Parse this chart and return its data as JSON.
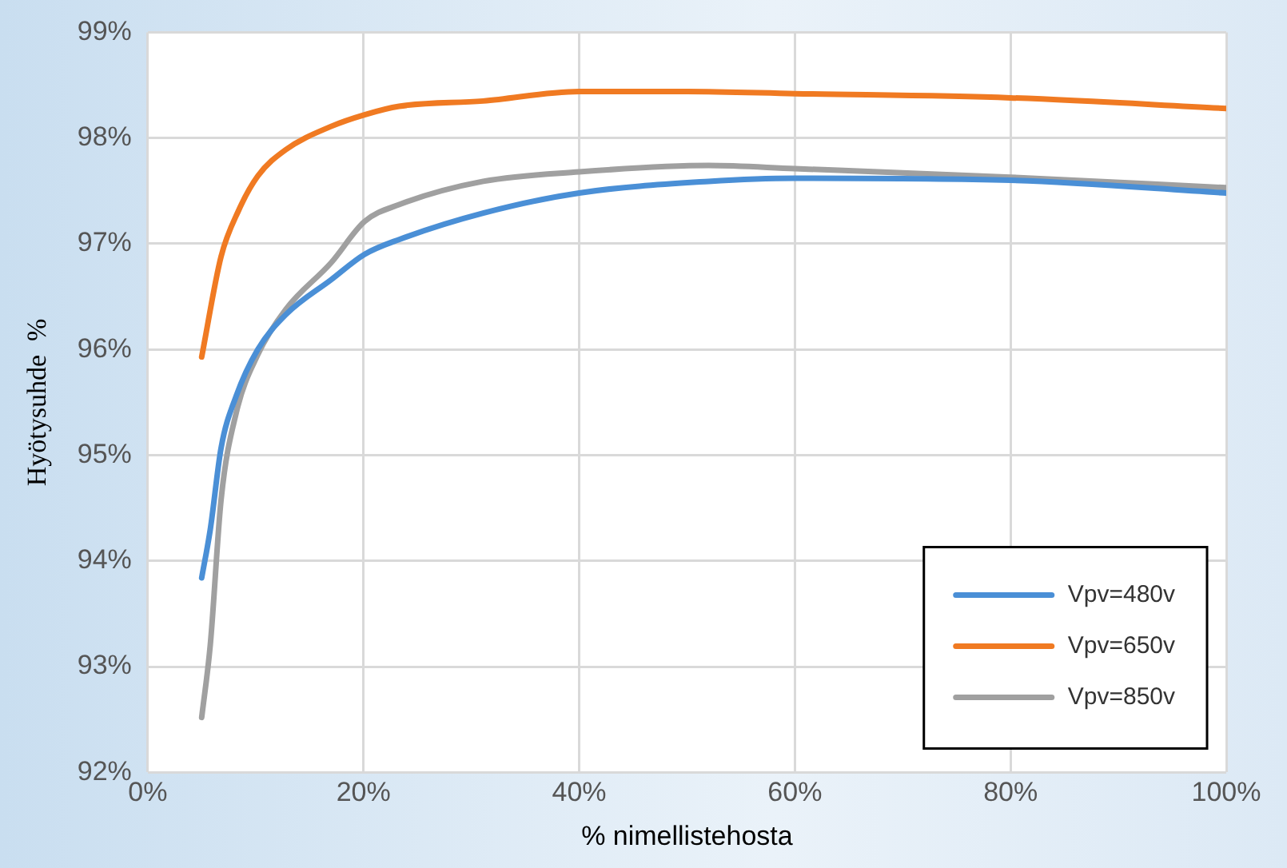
{
  "chart_data": {
    "type": "line",
    "xlabel": "% nimellistehosta",
    "ylabel": "Hyötysuhde  %",
    "xlim": [
      0,
      100
    ],
    "ylim": [
      92,
      99
    ],
    "xticks": [
      {
        "value": 0,
        "label": "0%"
      },
      {
        "value": 20,
        "label": "20%"
      },
      {
        "value": 40,
        "label": "40%"
      },
      {
        "value": 60,
        "label": "60%"
      },
      {
        "value": 80,
        "label": "80%"
      },
      {
        "value": 100,
        "label": "100%"
      }
    ],
    "yticks": [
      {
        "value": 92,
        "label": "92%"
      },
      {
        "value": 93,
        "label": "93%"
      },
      {
        "value": 94,
        "label": "94%"
      },
      {
        "value": 95,
        "label": "95%"
      },
      {
        "value": 96,
        "label": "96%"
      },
      {
        "value": 97,
        "label": "97%"
      },
      {
        "value": 98,
        "label": "98%"
      },
      {
        "value": 99,
        "label": "99%"
      }
    ],
    "grid": true,
    "legend": "bottom right",
    "marker": "none",
    "line_style": "solid",
    "series": [
      {
        "name": "Vpv=480v",
        "color": "#4a8fd6",
        "x": [
          5,
          5.8,
          6.8,
          8.2,
          10.2,
          12.8,
          17,
          20.1,
          23.3,
          31.1,
          40,
          52,
          60,
          80,
          100
        ],
        "values": [
          93.84,
          94.3,
          95.07,
          95.56,
          96.0,
          96.33,
          96.66,
          96.9,
          97.04,
          97.29,
          97.48,
          97.59,
          97.62,
          97.6,
          97.48
        ]
      },
      {
        "name": "Vpv=650v",
        "color": "#f07a22",
        "x": [
          5,
          6.8,
          8.4,
          10.2,
          12.8,
          17,
          20.1,
          23.3,
          31.1,
          40,
          50,
          60,
          80,
          100
        ],
        "values": [
          95.93,
          96.88,
          97.31,
          97.64,
          97.89,
          98.11,
          98.22,
          98.3,
          98.35,
          98.44,
          98.44,
          98.42,
          98.38,
          98.28
        ]
      },
      {
        "name": "Vpv=850v",
        "color": "#a0a0a0",
        "x": [
          5,
          5.8,
          6.8,
          8.2,
          10.2,
          12.8,
          17,
          20.1,
          23.3,
          31.1,
          40,
          52,
          60,
          80,
          100
        ],
        "values": [
          92.52,
          93.21,
          94.58,
          95.4,
          95.95,
          96.38,
          96.82,
          97.21,
          97.37,
          97.59,
          97.68,
          97.74,
          97.71,
          97.63,
          97.53
        ]
      }
    ]
  }
}
